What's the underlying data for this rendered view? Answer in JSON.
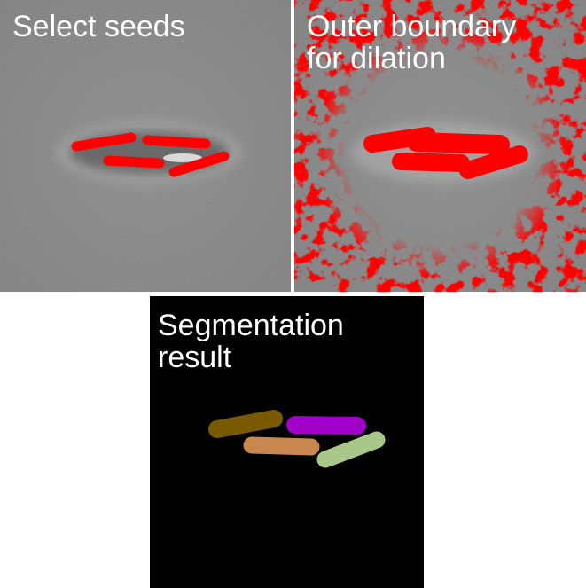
{
  "panels": {
    "seeds": {
      "title": "Select seeds",
      "seed_color": "#ff0000"
    },
    "boundary": {
      "title": "Outer boundary\nfor dilation",
      "boundary_color": "#ff0000"
    },
    "result": {
      "title": "Segmentation\nresult",
      "segment_colors": [
        "#7a5a00",
        "#a000c8",
        "#c8874f",
        "#a8c88a"
      ]
    }
  },
  "colors": {
    "microscopy_background": "#8a8a8a",
    "result_background": "#000000",
    "seed_red": "#ff0000"
  }
}
